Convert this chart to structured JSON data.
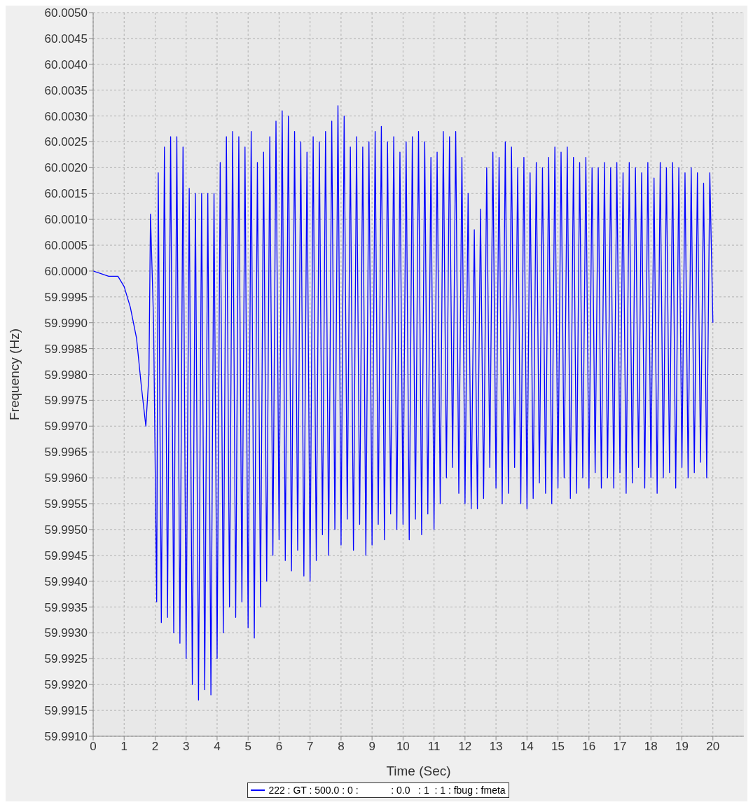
{
  "chart_data": {
    "type": "line",
    "xlabel": "Time (Sec)",
    "ylabel": "Frequency (Hz)",
    "xlim": [
      0,
      21
    ],
    "xticks": [
      0,
      1,
      2,
      3,
      4,
      5,
      6,
      7,
      8,
      9,
      10,
      11,
      12,
      13,
      14,
      15,
      16,
      17,
      18,
      19,
      20
    ],
    "ylim": [
      59.991,
      60.005
    ],
    "yticks": [
      {
        "value": 59.991,
        "label": "59.9910"
      },
      {
        "value": 59.9915,
        "label": "59.9915"
      },
      {
        "value": 59.992,
        "label": "59.9920"
      },
      {
        "value": 59.9925,
        "label": "59.9925"
      },
      {
        "value": 59.993,
        "label": "59.9930"
      },
      {
        "value": 59.9935,
        "label": "59.9935"
      },
      {
        "value": 59.994,
        "label": "59.9940"
      },
      {
        "value": 59.9945,
        "label": "59.9945"
      },
      {
        "value": 59.995,
        "label": "59.9950"
      },
      {
        "value": 59.9955,
        "label": "59.9955"
      },
      {
        "value": 59.996,
        "label": "59.9960"
      },
      {
        "value": 59.9965,
        "label": "59.9965"
      },
      {
        "value": 59.997,
        "label": "59.9970"
      },
      {
        "value": 59.9975,
        "label": "59.9975"
      },
      {
        "value": 59.998,
        "label": "59.9980"
      },
      {
        "value": 59.9985,
        "label": "59.9985"
      },
      {
        "value": 59.999,
        "label": "59.9990"
      },
      {
        "value": 59.9995,
        "label": "59.9995"
      },
      {
        "value": 60,
        "label": "60.0000"
      },
      {
        "value": 60.0005,
        "label": "60.0005"
      },
      {
        "value": 60.001,
        "label": "60.0010"
      },
      {
        "value": 60.0015,
        "label": "60.0015"
      },
      {
        "value": 60.002,
        "label": "60.0020"
      },
      {
        "value": 60.0025,
        "label": "60.0025"
      },
      {
        "value": 60.003,
        "label": "60.0030"
      },
      {
        "value": 60.0035,
        "label": "60.0035"
      },
      {
        "value": 60.004,
        "label": "60.0040"
      },
      {
        "value": 60.0045,
        "label": "60.0045"
      },
      {
        "value": 60.005,
        "label": "60.0050"
      }
    ],
    "grid": true,
    "legend": "bottom",
    "marker": "none",
    "line_style": "solid",
    "series": [
      {
        "name": "222 : GT : 500.0 : 0 :            : 0.0   : 1  : 1 : fbug : fmeta",
        "color": "#0000ff",
        "x": [
          0,
          0.5,
          0.8,
          1.0,
          1.2,
          1.4,
          1.55,
          1.7,
          1.8,
          1.85,
          1.95,
          2.05,
          2.1,
          2.2,
          2.3,
          2.4,
          2.5,
          2.6,
          2.7,
          2.8,
          2.9,
          3.0,
          3.1,
          3.2,
          3.3,
          3.4,
          3.5,
          3.6,
          3.7,
          3.8,
          3.9,
          4.0,
          4.1,
          4.2,
          4.3,
          4.4,
          4.5,
          4.6,
          4.7,
          4.8,
          4.9,
          5.0,
          5.1,
          5.2,
          5.3,
          5.4,
          5.5,
          5.6,
          5.7,
          5.8,
          5.9,
          6.0,
          6.1,
          6.2,
          6.3,
          6.4,
          6.5,
          6.6,
          6.7,
          6.8,
          6.9,
          7.0,
          7.1,
          7.2,
          7.3,
          7.4,
          7.5,
          7.6,
          7.7,
          7.8,
          7.9,
          8.0,
          8.1,
          8.2,
          8.3,
          8.4,
          8.5,
          8.6,
          8.7,
          8.8,
          8.9,
          9.0,
          9.1,
          9.2,
          9.3,
          9.4,
          9.5,
          9.6,
          9.7,
          9.8,
          9.9,
          10.0,
          10.1,
          10.2,
          10.3,
          10.4,
          10.5,
          10.6,
          10.7,
          10.8,
          10.9,
          11.0,
          11.1,
          11.2,
          11.3,
          11.4,
          11.5,
          11.6,
          11.7,
          11.8,
          11.9,
          12.0,
          12.1,
          12.2,
          12.3,
          12.4,
          12.5,
          12.6,
          12.7,
          12.8,
          12.9,
          13.0,
          13.1,
          13.2,
          13.3,
          13.4,
          13.5,
          13.6,
          13.7,
          13.8,
          13.9,
          14.0,
          14.1,
          14.2,
          14.3,
          14.4,
          14.5,
          14.6,
          14.7,
          14.8,
          14.9,
          15.0,
          15.1,
          15.2,
          15.3,
          15.4,
          15.5,
          15.6,
          15.7,
          15.8,
          15.9,
          16.0,
          16.1,
          16.2,
          16.3,
          16.4,
          16.5,
          16.6,
          16.7,
          16.8,
          16.9,
          17.0,
          17.1,
          17.2,
          17.3,
          17.4,
          17.5,
          17.6,
          17.7,
          17.8,
          17.9,
          18.0,
          18.1,
          18.2,
          18.3,
          18.4,
          18.5,
          18.6,
          18.7,
          18.8,
          18.9,
          19.0,
          19.1,
          19.2,
          19.3,
          19.4,
          19.5,
          19.6,
          19.7,
          19.8,
          19.9,
          20.0
        ],
        "values": [
          60.0,
          59.9999,
          59.9999,
          59.9997,
          59.9993,
          59.9987,
          59.9978,
          59.997,
          59.998,
          60.0011,
          59.999,
          59.9936,
          60.0019,
          59.9932,
          60.0024,
          59.9933,
          60.0026,
          59.993,
          60.0026,
          59.9928,
          60.0024,
          59.9925,
          60.0016,
          59.992,
          60.0015,
          59.9917,
          60.0015,
          59.9919,
          60.0015,
          59.9918,
          60.0015,
          59.9925,
          60.0021,
          59.993,
          60.0026,
          59.9935,
          60.0027,
          59.9933,
          60.0026,
          59.9936,
          60.0024,
          59.9931,
          60.0027,
          59.9929,
          60.0021,
          59.9935,
          60.0023,
          59.994,
          60.0026,
          59.9945,
          60.0029,
          59.9948,
          60.0031,
          59.9944,
          60.003,
          59.9942,
          60.0027,
          59.9946,
          60.0025,
          59.9941,
          60.0023,
          59.994,
          60.0026,
          59.9944,
          60.0025,
          59.9949,
          60.0027,
          59.9945,
          60.0029,
          59.995,
          60.0032,
          59.9947,
          60.003,
          59.9952,
          60.0024,
          59.9946,
          60.0026,
          59.9951,
          60.0024,
          59.9945,
          60.0025,
          59.9947,
          60.0027,
          59.9951,
          60.0028,
          59.9948,
          60.0025,
          59.9953,
          60.0026,
          59.995,
          60.0023,
          59.9951,
          60.0025,
          59.9948,
          60.0026,
          59.9952,
          60.0027,
          59.9949,
          60.0025,
          59.9953,
          60.0022,
          59.995,
          60.0023,
          59.9955,
          60.0027,
          59.996,
          60.0026,
          59.9962,
          60.0027,
          59.9957,
          60.0022,
          59.9955,
          60.0015,
          59.9954,
          60.0008,
          59.9954,
          60.0012,
          59.9956,
          60.002,
          59.9962,
          60.0023,
          59.9958,
          60.0022,
          59.9955,
          60.0025,
          59.9957,
          60.0024,
          59.9962,
          60.002,
          59.9955,
          60.0022,
          59.9954,
          60.0019,
          59.9956,
          60.0021,
          59.9959,
          60.002,
          59.9957,
          60.0022,
          59.9955,
          60.0024,
          59.9958,
          60.0023,
          59.996,
          60.0024,
          59.9956,
          60.0022,
          59.9957,
          60.0021,
          59.996,
          60.0022,
          59.9958,
          60.002,
          59.9961,
          60.002,
          59.9958,
          60.0021,
          59.996,
          60.002,
          59.9958,
          60.0021,
          59.9961,
          60.0019,
          59.9957,
          60.0021,
          59.9959,
          60.002,
          59.9962,
          60.0019,
          59.9958,
          60.0021,
          59.996,
          60.0018,
          59.9957,
          60.0021,
          59.996,
          60.002,
          59.9961,
          60.0021,
          59.9958,
          60.002,
          59.9962,
          60.0019,
          59.996,
          60.002,
          59.9961,
          60.0019,
          59.9963,
          60.0017,
          59.996,
          60.0019,
          59.999
        ]
      }
    ]
  }
}
